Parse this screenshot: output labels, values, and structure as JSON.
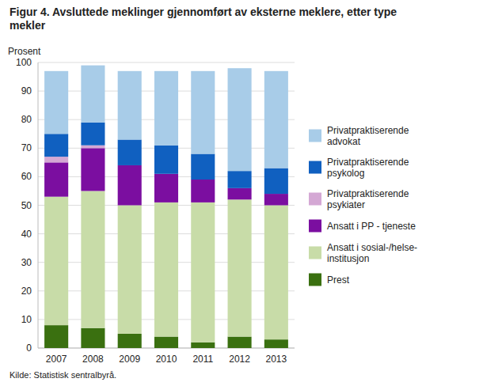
{
  "chart_data": {
    "type": "bar",
    "stacked": true,
    "title": "Figur 4. Avsluttede meklinger gjennomført av eksterne meklere, etter type\nmekler",
    "y_label": "Prosent",
    "source": "Kilde: Statistisk sentralbyrå.",
    "categories": [
      "2007",
      "2008",
      "2009",
      "2010",
      "2011",
      "2012",
      "2013"
    ],
    "series": [
      {
        "name": "Prest",
        "color": "#3a7010",
        "values": [
          8,
          7,
          5,
          4,
          2,
          4,
          3
        ]
      },
      {
        "name": "Ansatt i sosial-/helse-\ninstitusjon",
        "color": "#c8dca8",
        "values": [
          45,
          48,
          45,
          47,
          49,
          48,
          47
        ]
      },
      {
        "name": "Ansatt i PP - tjeneste",
        "color": "#7b0ea0",
        "values": [
          12,
          15,
          14,
          10,
          8,
          4,
          4
        ]
      },
      {
        "name": "Privatpraktiserende\npsykiater",
        "color": "#d4a8d4",
        "values": [
          2,
          1,
          0,
          0,
          0,
          0,
          0
        ]
      },
      {
        "name": "Privatpraktiserende\npsykolog",
        "color": "#1060c0",
        "values": [
          8,
          8,
          9,
          10,
          9,
          6,
          9
        ]
      },
      {
        "name": "Privatpraktiserende\nadvokat",
        "color": "#a8cce8",
        "values": [
          22,
          20,
          24,
          26,
          29,
          36,
          34
        ]
      }
    ],
    "ylim": [
      0,
      100
    ],
    "yticks": [
      0,
      10,
      20,
      30,
      40,
      50,
      60,
      70,
      80,
      90,
      100
    ],
    "grid": true,
    "legend": "right"
  }
}
